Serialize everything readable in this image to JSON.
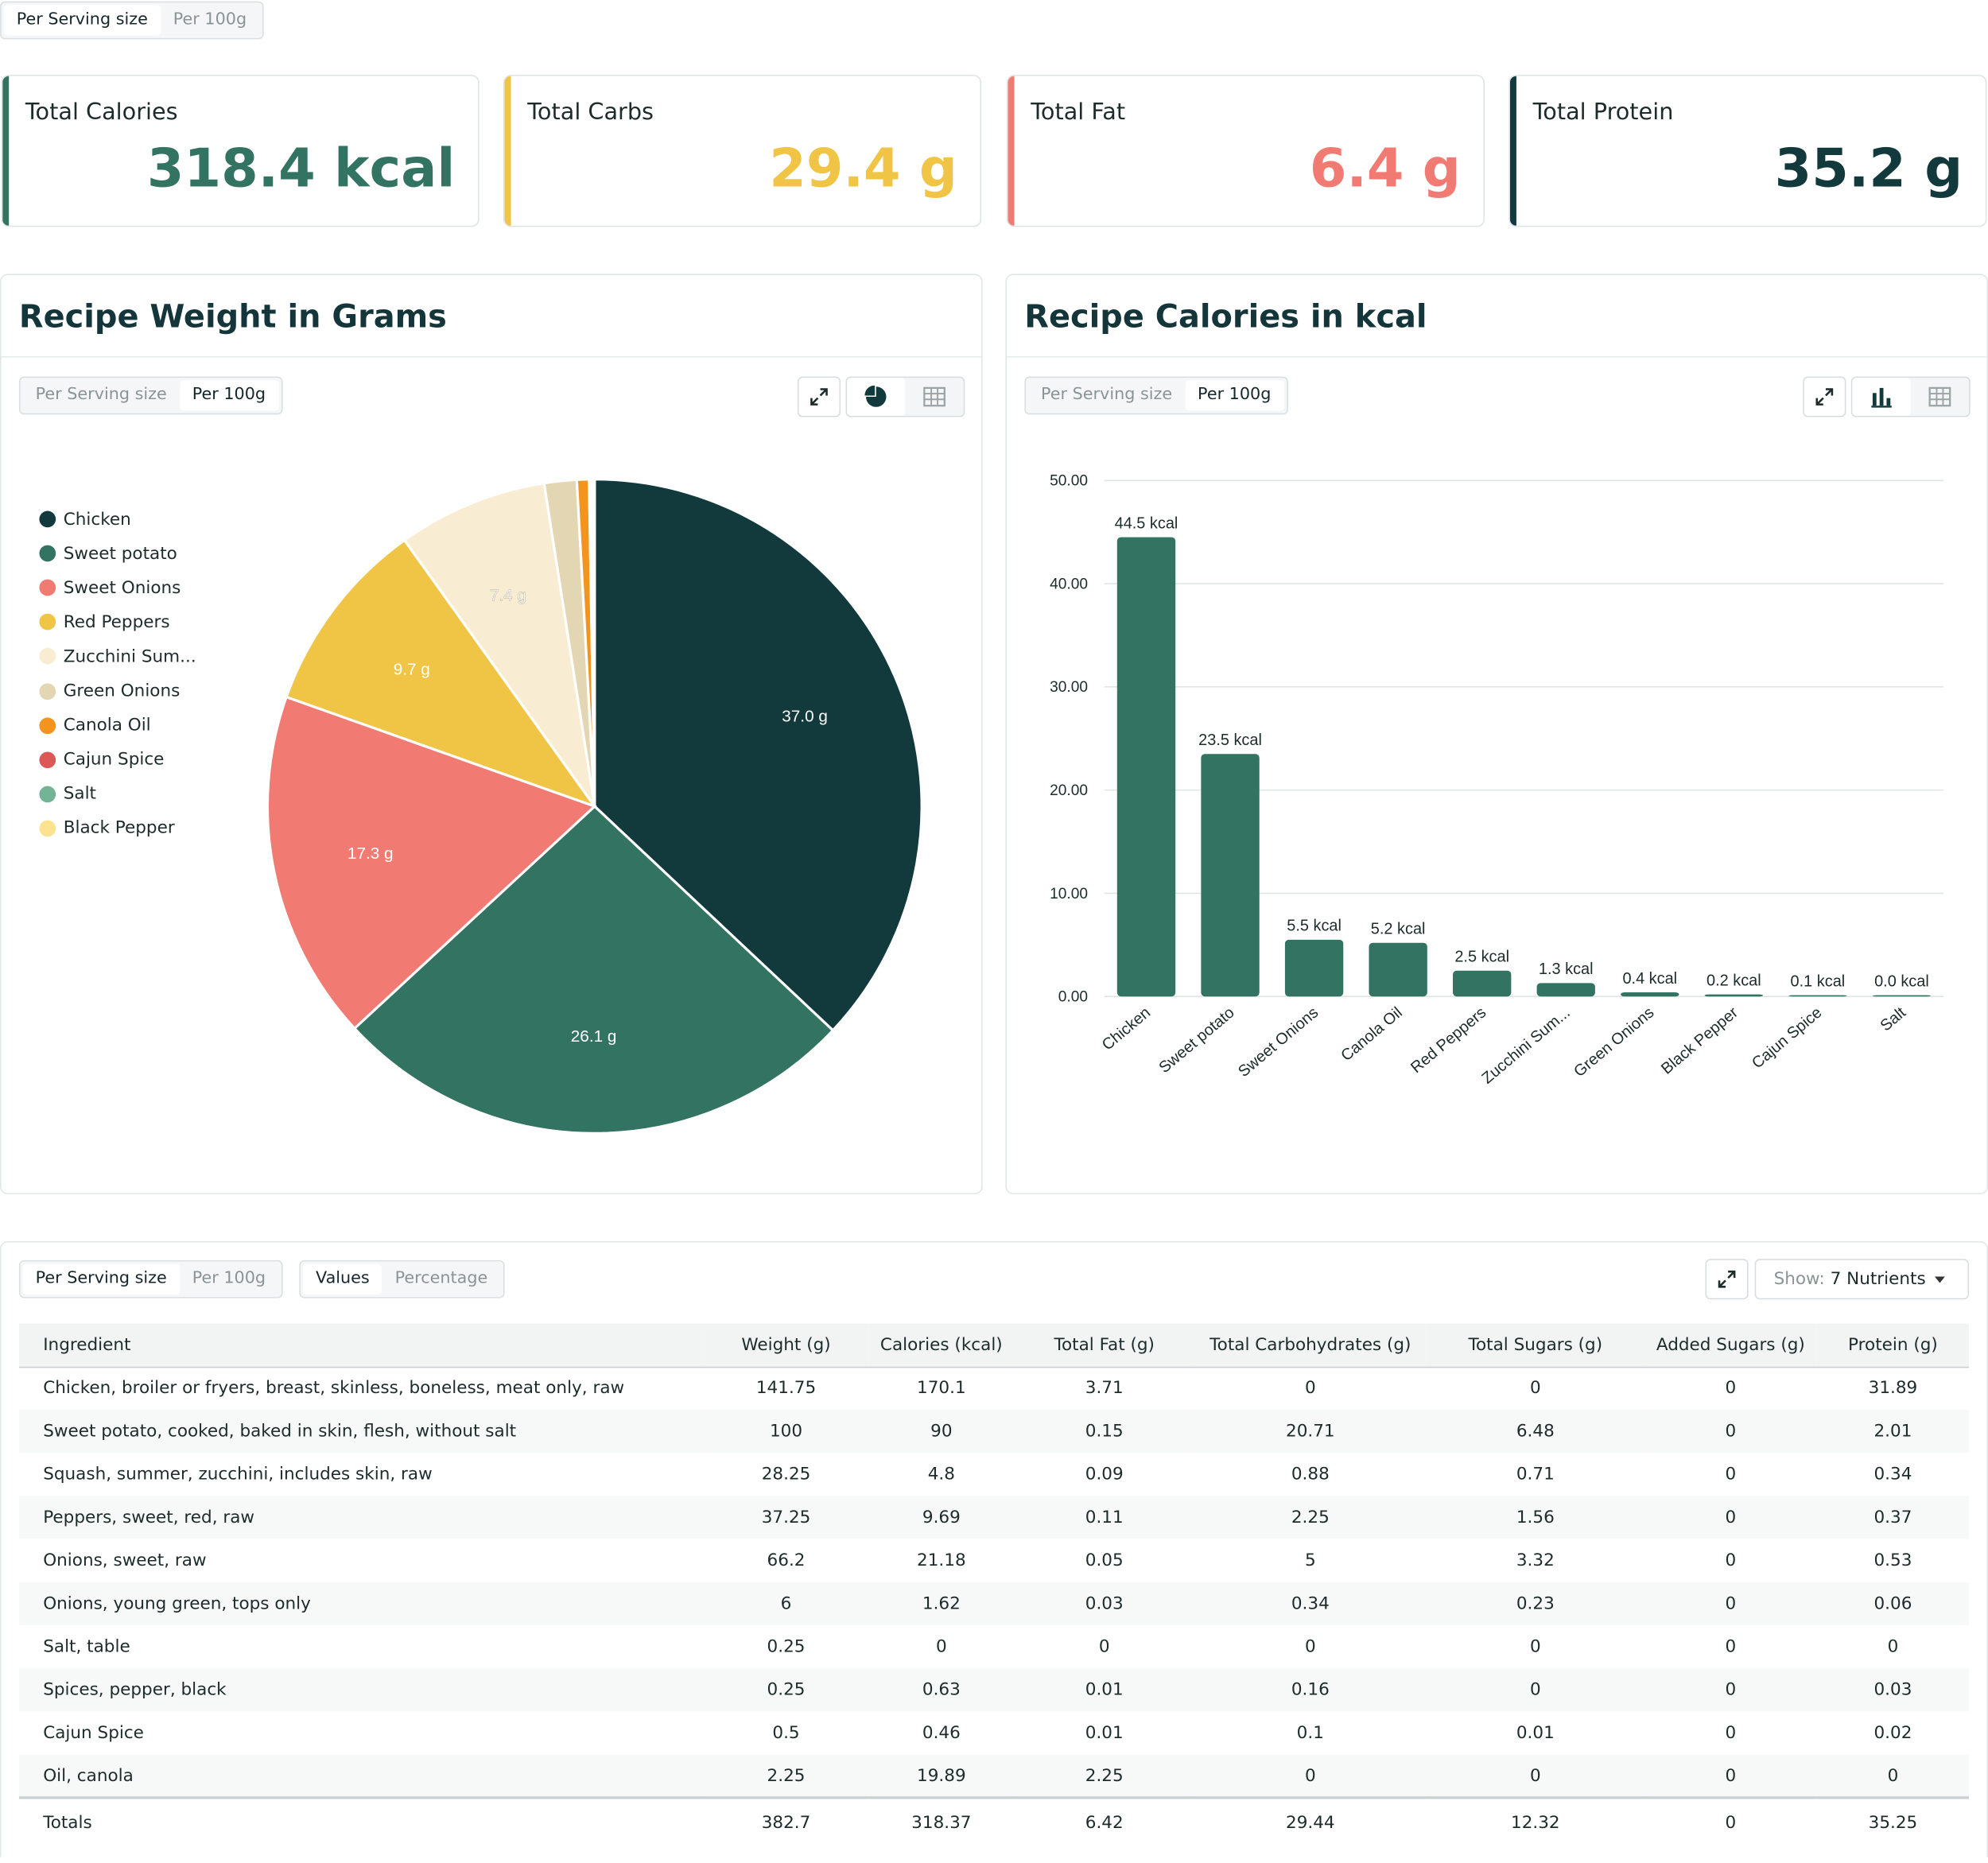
{
  "top_toggle": {
    "options": [
      "Per Serving size",
      "Per 100g"
    ],
    "active": 0
  },
  "stats": [
    {
      "label": "Total Calories",
      "value": "318.4 kcal",
      "color": "#337361"
    },
    {
      "label": "Total Carbs",
      "value": "29.4 g",
      "color": "#f0c445"
    },
    {
      "label": "Total Fat",
      "value": "6.4 g",
      "color": "#f17a72"
    },
    {
      "label": "Total Protein",
      "value": "35.2 g",
      "color": "#123a3c"
    }
  ],
  "weight_panel": {
    "title": "Recipe Weight in Grams",
    "toggle": [
      "Per Serving size",
      "Per 100g"
    ],
    "icons": [
      "expand-icon",
      "pie-chart-icon",
      "table-icon"
    ]
  },
  "calories_panel": {
    "title": "Recipe Calories in kcal",
    "toggle": [
      "Per Serving size",
      "Per 100g"
    ],
    "icons": [
      "expand-icon",
      "bar-chart-icon",
      "table-icon"
    ]
  },
  "chart_data": [
    {
      "type": "pie",
      "title": "Recipe Weight in Grams",
      "legend_position": "left",
      "slices": [
        {
          "label": "Chicken",
          "value": 37.0,
          "text": "37.0 g",
          "color": "#123a3c"
        },
        {
          "label": "Sweet potato",
          "value": 26.1,
          "text": "26.1 g",
          "color": "#337361"
        },
        {
          "label": "Sweet Onions",
          "value": 17.3,
          "text": "17.3 g",
          "color": "#f17a72"
        },
        {
          "label": "Red Peppers",
          "value": 9.7,
          "text": "9.7 g",
          "color": "#f0c445"
        },
        {
          "label": "Zucchini Sum...",
          "value": 7.4,
          "text": "7.4 g",
          "color": "#f8ecd2"
        },
        {
          "label": "Green Onions",
          "value": 1.6,
          "text": "",
          "color": "#e3d6b3"
        },
        {
          "label": "Canola Oil",
          "value": 0.6,
          "text": "",
          "color": "#f3941e"
        },
        {
          "label": "Cajun Spice",
          "value": 0.13,
          "text": "",
          "color": "#dd5757"
        },
        {
          "label": "Salt",
          "value": 0.07,
          "text": "",
          "color": "#73b497"
        },
        {
          "label": "Black Pepper",
          "value": 0.07,
          "text": "",
          "color": "#fde38f"
        }
      ]
    },
    {
      "type": "bar",
      "title": "Recipe Calories in kcal",
      "categories": [
        "Chicken",
        "Sweet potato",
        "Sweet Onions",
        "Canola Oil",
        "Red Peppers",
        "Zucchini Sum...",
        "Green Onions",
        "Black Pepper",
        "Cajun Spice",
        "Salt"
      ],
      "values": [
        44.5,
        23.5,
        5.5,
        5.2,
        2.5,
        1.3,
        0.4,
        0.2,
        0.1,
        0.0
      ],
      "value_labels": [
        "44.5 kcal",
        "23.5 kcal",
        "5.5 kcal",
        "5.2 kcal",
        "2.5 kcal",
        "1.3 kcal",
        "0.4 kcal",
        "0.2 kcal",
        "0.1 kcal",
        "0.0 kcal"
      ],
      "yticks": [
        "50.00",
        "40.00",
        "30.00",
        "20.00",
        "10.00",
        "0.00"
      ],
      "ylim": [
        0,
        50
      ],
      "grid": true,
      "color": "#337361"
    }
  ],
  "table_section": {
    "toggle1": [
      "Per Serving size",
      "Per 100g"
    ],
    "toggle2": [
      "Values",
      "Percentage"
    ],
    "show_label": "Show:",
    "show_value": "7 Nutrients",
    "columns": [
      "Ingredient",
      "Weight (g)",
      "Calories (kcal)",
      "Total Fat (g)",
      "Total Carbohydrates (g)",
      "Total Sugars (g)",
      "Added Sugars (g)",
      "Protein (g)"
    ],
    "rows": [
      [
        "Chicken, broiler or fryers, breast, skinless, boneless, meat only, raw",
        "141.75",
        "170.1",
        "3.71",
        "0",
        "0",
        "0",
        "31.89"
      ],
      [
        "Sweet potato, cooked, baked in skin, flesh, without salt",
        "100",
        "90",
        "0.15",
        "20.71",
        "6.48",
        "0",
        "2.01"
      ],
      [
        "Squash, summer, zucchini, includes skin, raw",
        "28.25",
        "4.8",
        "0.09",
        "0.88",
        "0.71",
        "0",
        "0.34"
      ],
      [
        "Peppers, sweet, red, raw",
        "37.25",
        "9.69",
        "0.11",
        "2.25",
        "1.56",
        "0",
        "0.37"
      ],
      [
        "Onions, sweet, raw",
        "66.2",
        "21.18",
        "0.05",
        "5",
        "3.32",
        "0",
        "0.53"
      ],
      [
        "Onions, young green, tops only",
        "6",
        "1.62",
        "0.03",
        "0.34",
        "0.23",
        "0",
        "0.06"
      ],
      [
        "Salt, table",
        "0.25",
        "0",
        "0",
        "0",
        "0",
        "0",
        "0"
      ],
      [
        "Spices, pepper, black",
        "0.25",
        "0.63",
        "0.01",
        "0.16",
        "0",
        "0",
        "0.03"
      ],
      [
        "Cajun Spice",
        "0.5",
        "0.46",
        "0.01",
        "0.1",
        "0.01",
        "0",
        "0.02"
      ],
      [
        "Oil, canola",
        "2.25",
        "19.89",
        "2.25",
        "0",
        "0",
        "0",
        "0"
      ]
    ],
    "totals": [
      "Totals",
      "382.7",
      "318.37",
      "6.42",
      "29.44",
      "12.32",
      "0",
      "35.25"
    ]
  }
}
